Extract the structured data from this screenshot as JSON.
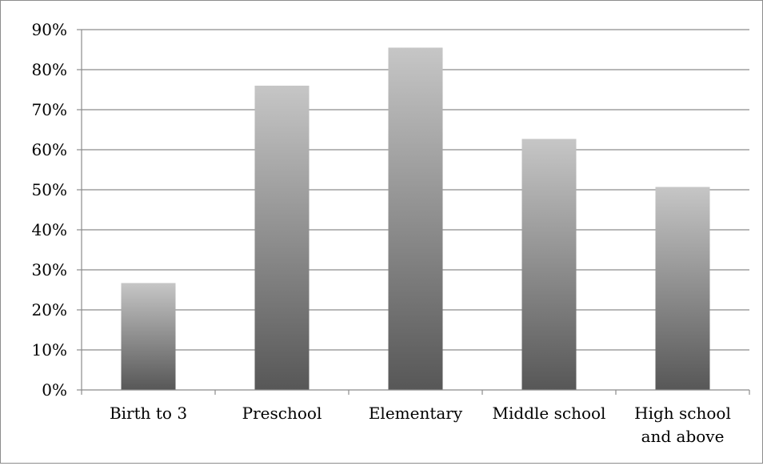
{
  "chart_data": {
    "type": "bar",
    "title": "",
    "xlabel": "",
    "ylabel": "",
    "categories": [
      [
        "Birth to 3"
      ],
      [
        "Preschool"
      ],
      [
        "Elementary"
      ],
      [
        "Middle school"
      ],
      [
        "High school",
        "and above"
      ]
    ],
    "values": [
      0.267,
      0.76,
      0.855,
      0.627,
      0.507
    ],
    "ylim": [
      0,
      0.9
    ],
    "y_ticks": [
      0,
      0.1,
      0.2,
      0.3,
      0.4,
      0.5,
      0.6,
      0.7,
      0.8,
      0.9
    ],
    "y_tick_labels": [
      "0%",
      "10%",
      "20%",
      "30%",
      "40%",
      "50%",
      "60%",
      "70%",
      "80%",
      "90%"
    ],
    "grid": true,
    "legend": "none",
    "colors": {
      "bar_top": "#c6c6c6",
      "bar_bottom": "#575757",
      "gridline": "#8c8c8c",
      "axis": "#8c8c8c"
    }
  }
}
